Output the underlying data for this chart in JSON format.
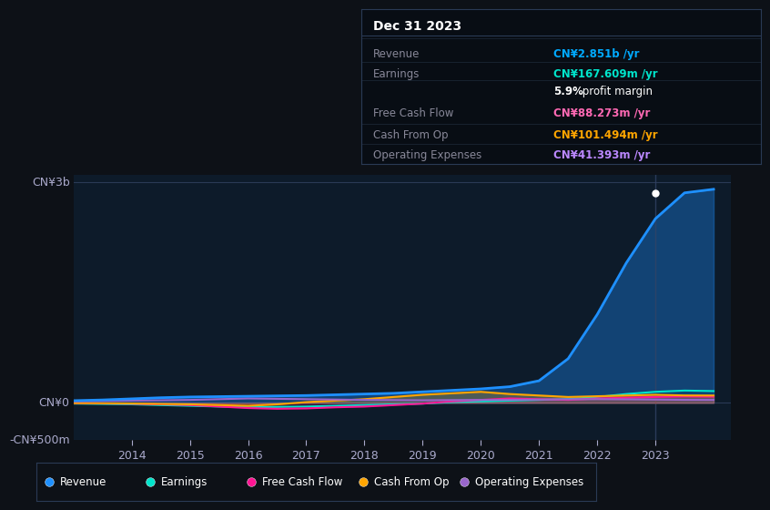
{
  "bg_color": "#0d1117",
  "plot_bg_color": "#0d1b2a",
  "title_box": {
    "title": "Dec 31 2023",
    "rows": [
      {
        "label": "Revenue",
        "value": "CN¥2.851b /yr",
        "value_color": "#00aaff"
      },
      {
        "label": "Earnings",
        "value": "CN¥167.609m /yr",
        "value_color": "#00e5cc"
      },
      {
        "label": "",
        "value": "5.9% profit margin",
        "value_color": "#ffffff",
        "bold_part": "5.9%"
      },
      {
        "label": "Free Cash Flow",
        "value": "CN¥88.273m /yr",
        "value_color": "#ff69b4"
      },
      {
        "label": "Cash From Op",
        "value": "CN¥101.494m /yr",
        "value_color": "#ffa500"
      },
      {
        "label": "Operating Expenses",
        "value": "CN¥41.393m /yr",
        "value_color": "#bb88ff"
      }
    ]
  },
  "ylim": [
    -500,
    3100
  ],
  "ytick_vals": [
    -500,
    0,
    3000
  ],
  "ytick_labels": [
    "-CN¥500m",
    "CN¥0",
    "CN¥3b"
  ],
  "years": [
    2013.0,
    2013.5,
    2014.0,
    2014.5,
    2015.0,
    2015.5,
    2016.0,
    2016.5,
    2017.0,
    2017.5,
    2018.0,
    2018.5,
    2019.0,
    2019.5,
    2020.0,
    2020.5,
    2021.0,
    2021.5,
    2022.0,
    2022.5,
    2023.0,
    2023.5,
    2024.0
  ],
  "revenue": [
    30,
    40,
    55,
    70,
    80,
    85,
    90,
    95,
    100,
    110,
    120,
    130,
    150,
    170,
    190,
    220,
    300,
    600,
    1200,
    1900,
    2500,
    2851,
    2900
  ],
  "earnings": [
    -10,
    -15,
    -20,
    -30,
    -40,
    -50,
    -60,
    -55,
    -50,
    -40,
    -30,
    -20,
    -10,
    10,
    20,
    30,
    40,
    50,
    80,
    120,
    150,
    167,
    160
  ],
  "free_cash_flow": [
    -5,
    -8,
    -12,
    -20,
    -30,
    -50,
    -70,
    -80,
    -75,
    -60,
    -50,
    -30,
    -10,
    20,
    40,
    60,
    50,
    40,
    60,
    70,
    80,
    88,
    85
  ],
  "cash_from_op": [
    -3,
    -5,
    -8,
    -15,
    -20,
    -30,
    -40,
    -20,
    10,
    30,
    50,
    80,
    110,
    130,
    150,
    120,
    100,
    80,
    90,
    100,
    110,
    101,
    100
  ],
  "operating_expenses": [
    20,
    25,
    30,
    35,
    40,
    50,
    60,
    55,
    50,
    45,
    40,
    38,
    35,
    38,
    40,
    42,
    45,
    48,
    50,
    48,
    45,
    41,
    40
  ],
  "series_colors": {
    "revenue": "#1e90ff",
    "earnings": "#00e5cc",
    "free_cash_flow": "#ff1493",
    "cash_from_op": "#ffa500",
    "operating_expenses": "#9966cc"
  },
  "legend_items": [
    {
      "label": "Revenue",
      "color": "#1e90ff"
    },
    {
      "label": "Earnings",
      "color": "#00e5cc"
    },
    {
      "label": "Free Cash Flow",
      "color": "#ff1493"
    },
    {
      "label": "Cash From Op",
      "color": "#ffa500"
    },
    {
      "label": "Operating Expenses",
      "color": "#9966cc"
    }
  ],
  "xticks": [
    2014,
    2015,
    2016,
    2017,
    2018,
    2019,
    2020,
    2021,
    2022,
    2023
  ],
  "xlim": [
    2013.0,
    2024.3
  ]
}
